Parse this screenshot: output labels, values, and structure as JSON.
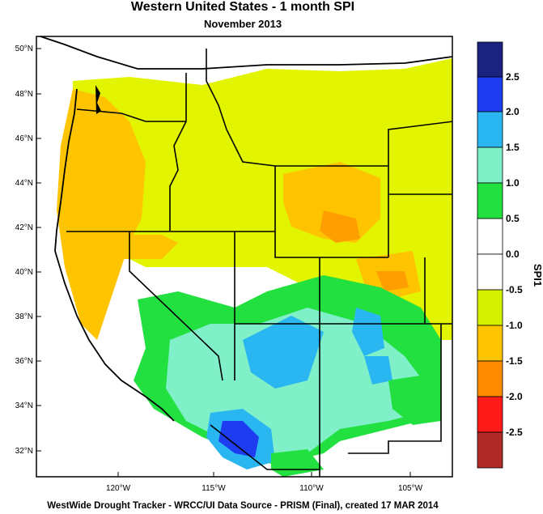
{
  "title": "Western United States - 1 month SPI",
  "subtitle": "November 2013",
  "footer": "WestWide Drought Tracker - WRCC/UI  Data Source - PRISM (Final), created 17 MAR 2014",
  "map": {
    "lat_ticks": [
      "50°N",
      "48°N",
      "46°N",
      "44°N",
      "42°N",
      "40°N",
      "38°N",
      "36°N",
      "34°N",
      "32°N"
    ],
    "lon_ticks": [
      "120°W",
      "115°W",
      "110°W",
      "105°W"
    ]
  },
  "legend": {
    "label": "SPI1",
    "ticks": [
      "2.5",
      "2.0",
      "1.5",
      "1.0",
      "0.5",
      "0.0",
      "-0.5",
      "-1.0",
      "-1.5",
      "-2.0",
      "-2.5"
    ],
    "colors": [
      "#1a237e",
      "#1f3df0",
      "#2ab6f0",
      "#7ff0c8",
      "#22e040",
      "#ffffff",
      "#ffffff",
      "#d4f200",
      "#ffc400",
      "#ff8c00",
      "#ff1a1a",
      "#b02a2a"
    ]
  }
}
